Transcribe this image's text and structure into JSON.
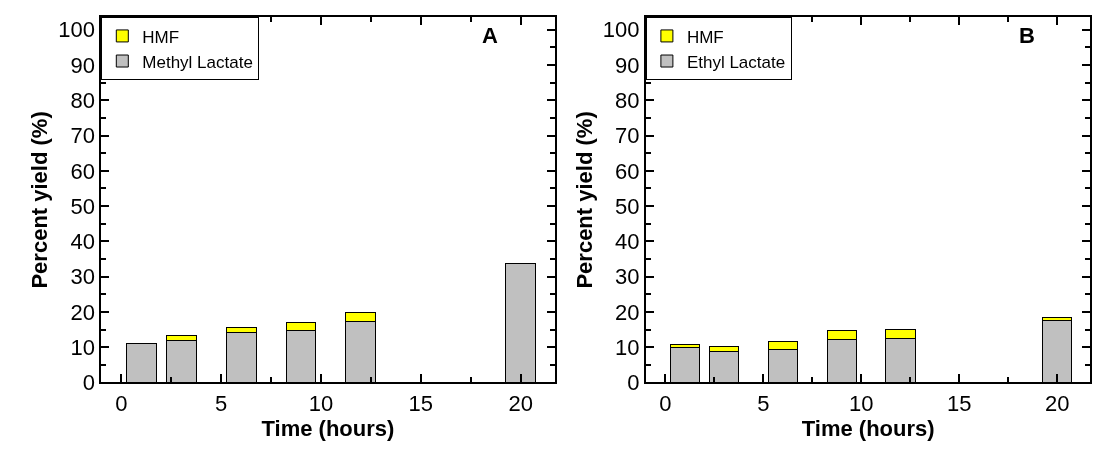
{
  "chart_data": [
    {
      "type": "bar",
      "stacked": true,
      "title": "A",
      "xlabel": "Time (hours)",
      "ylabel": "Percent yield (%)",
      "x": [
        1,
        3,
        6,
        9,
        12,
        20
      ],
      "series": [
        {
          "name": "Methyl Lactate",
          "color": "#c0c0c0",
          "values": [
            11.0,
            11.9,
            14.2,
            14.8,
            17.4,
            33.7
          ]
        },
        {
          "name": "HMF",
          "color": "#ffff00",
          "values": [
            0,
            1.3,
            1.5,
            2.3,
            2.3,
            0
          ]
        }
      ],
      "xlim": [
        -1,
        21.7
      ],
      "xticks": [
        0,
        5,
        10,
        15,
        20
      ],
      "ylim": [
        0,
        103.5
      ],
      "yticks": [
        0,
        10,
        20,
        30,
        40,
        50,
        60,
        70,
        80,
        90,
        100
      ],
      "legend": "top left"
    },
    {
      "type": "bar",
      "stacked": true,
      "title": "B",
      "xlabel": "Time (hours)",
      "ylabel": "Percent yield (%)",
      "x": [
        1,
        3,
        6,
        9,
        12,
        20
      ],
      "series": [
        {
          "name": "Ethyl Lactate",
          "color": "#c0c0c0",
          "values": [
            9.8,
            8.7,
            9.4,
            12.2,
            12.6,
            17.7
          ]
        },
        {
          "name": "HMF",
          "color": "#ffff00",
          "values": [
            0.9,
            1.6,
            2.3,
            2.4,
            2.4,
            0.8
          ]
        }
      ],
      "xlim": [
        -1,
        21.7
      ],
      "xticks": [
        0,
        5,
        10,
        15,
        20
      ],
      "ylim": [
        0,
        103.5
      ],
      "yticks": [
        0,
        10,
        20,
        30,
        40,
        50,
        60,
        70,
        80,
        90,
        100
      ],
      "legend": "top left"
    }
  ]
}
